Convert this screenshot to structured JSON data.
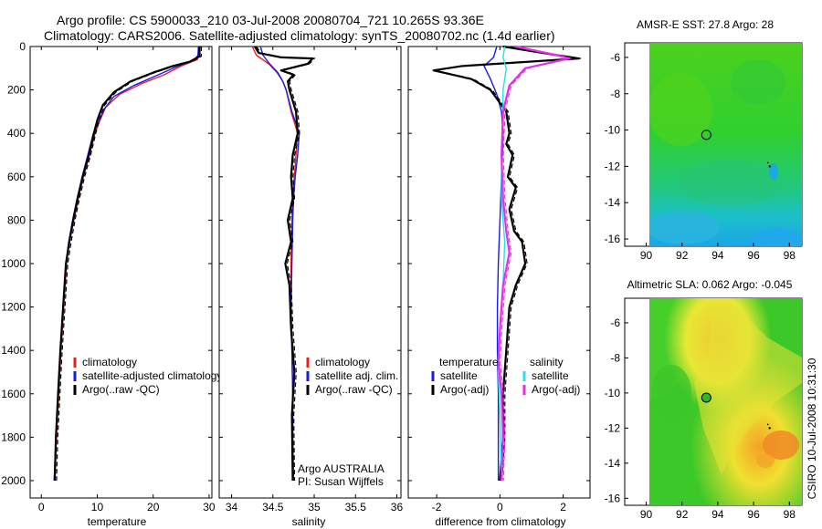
{
  "header": {
    "line1": "Argo profile: CS 5900033_210 03-Jul-2008 20080704_721 10.265S 93.36E",
    "line2": "Climatology: CARS2006. Satellite-adjusted climatology: synTS_20080702.nc (1.4d earlier)"
  },
  "colors": {
    "climatology": "#e8221b",
    "satellite": "#1a1ae6",
    "argo": "#000000",
    "sat_salinity": "#22e2ee",
    "argo_adj_salinity": "#e62ee6"
  },
  "chart_data": [
    {
      "type": "line",
      "title": "",
      "xlabel": "temperature",
      "ylabel": "",
      "xlim": [
        -2,
        30.5
      ],
      "ylim": [
        0,
        2080
      ],
      "xticks": [
        "0",
        "10",
        "20",
        "30"
      ],
      "xtick_values": [
        0,
        10,
        20,
        30
      ],
      "yticks": [
        "0",
        "200",
        "400",
        "600",
        "800",
        "1000",
        "1200",
        "1400",
        "1600",
        "1800",
        "2000"
      ],
      "ytick_values": [
        0,
        200,
        400,
        600,
        800,
        1000,
        1200,
        1400,
        1600,
        1800,
        2000
      ],
      "legend": [
        "climatology",
        "satellite-adjusted climatology",
        "Argo(..raw -QC)"
      ],
      "series": [
        {
          "name": "climatology",
          "color": "#e8221b",
          "points": [
            [
              28.2,
              0
            ],
            [
              28.1,
              40
            ],
            [
              27.9,
              60
            ],
            [
              25,
              90
            ],
            [
              22,
              130
            ],
            [
              18,
              170
            ],
            [
              14,
              220
            ],
            [
              11.5,
              280
            ],
            [
              10.5,
              340
            ],
            [
              9.6,
              400
            ],
            [
              8.6,
              500
            ],
            [
              7.5,
              600
            ],
            [
              6.6,
              700
            ],
            [
              5.8,
              800
            ],
            [
              5,
              900
            ],
            [
              4.5,
              1000
            ],
            [
              4,
              1200
            ],
            [
              3.5,
              1400
            ],
            [
              3.1,
              1600
            ],
            [
              2.7,
              1800
            ],
            [
              2.4,
              2000
            ]
          ]
        },
        {
          "name": "satellite-adjusted climatology",
          "color": "#1a1ae6",
          "points": [
            [
              28.1,
              0
            ],
            [
              28,
              40
            ],
            [
              27.5,
              60
            ],
            [
              24,
              95
            ],
            [
              20.5,
              135
            ],
            [
              16.5,
              180
            ],
            [
              13,
              230
            ],
            [
              11.2,
              290
            ],
            [
              10.2,
              350
            ],
            [
              9.3,
              400
            ],
            [
              8.3,
              500
            ],
            [
              7.3,
              600
            ],
            [
              6.4,
              700
            ],
            [
              5.6,
              800
            ],
            [
              4.9,
              900
            ],
            [
              4.4,
              1000
            ],
            [
              3.9,
              1200
            ],
            [
              3.4,
              1400
            ],
            [
              3,
              1600
            ],
            [
              2.6,
              1800
            ],
            [
              2.3,
              2000
            ]
          ]
        },
        {
          "name": "Argo(..raw -QC)",
          "color": "#000000",
          "points": [
            [
              28.3,
              0
            ],
            [
              28.3,
              45
            ],
            [
              26.5,
              70
            ],
            [
              23.5,
              90
            ],
            [
              20,
              120
            ],
            [
              16,
              160
            ],
            [
              13,
              210
            ],
            [
              11,
              270
            ],
            [
              10,
              340
            ],
            [
              9.4,
              400
            ],
            [
              8.5,
              500
            ],
            [
              7.4,
              600
            ],
            [
              6.5,
              700
            ],
            [
              5.7,
              800
            ],
            [
              5,
              900
            ],
            [
              4.4,
              1000
            ],
            [
              3.9,
              1200
            ],
            [
              3.4,
              1400
            ],
            [
              3,
              1600
            ],
            [
              2.6,
              1800
            ],
            [
              2.4,
              2000
            ]
          ]
        }
      ]
    },
    {
      "type": "line",
      "title": "",
      "xlabel": "salinity",
      "xlim": [
        33.85,
        36.05
      ],
      "ylim": [
        0,
        2080
      ],
      "xticks": [
        "34",
        "34.5",
        "35",
        "35.5",
        "36"
      ],
      "xtick_values": [
        34,
        34.5,
        35,
        35.5,
        36
      ],
      "legend": [
        "climatology",
        "satellite adj. clim.",
        "Argo(..raw -QC)"
      ],
      "note_lines": [
        "Argo AUSTRALIA",
        "PI: Susan Wijffels"
      ],
      "series": [
        {
          "name": "climatology",
          "color": "#e8221b",
          "points": [
            [
              34.25,
              0
            ],
            [
              34.3,
              40
            ],
            [
              34.45,
              80
            ],
            [
              34.55,
              120
            ],
            [
              34.62,
              160
            ],
            [
              34.66,
              200
            ],
            [
              34.72,
              300
            ],
            [
              34.8,
              400
            ],
            [
              34.78,
              500
            ],
            [
              34.76,
              600
            ],
            [
              34.74,
              700
            ],
            [
              34.73,
              800
            ],
            [
              34.72,
              1000
            ],
            [
              34.72,
              1200
            ],
            [
              34.73,
              1400
            ],
            [
              34.74,
              1600
            ],
            [
              34.74,
              1800
            ],
            [
              34.75,
              2000
            ]
          ]
        },
        {
          "name": "satellite adj. clim.",
          "color": "#1a1ae6",
          "points": [
            [
              34.35,
              0
            ],
            [
              34.38,
              40
            ],
            [
              34.46,
              80
            ],
            [
              34.56,
              120
            ],
            [
              34.62,
              160
            ],
            [
              34.66,
              200
            ],
            [
              34.73,
              300
            ],
            [
              34.82,
              400
            ],
            [
              34.8,
              500
            ],
            [
              34.77,
              600
            ],
            [
              34.75,
              700
            ],
            [
              34.74,
              800
            ],
            [
              34.73,
              1000
            ],
            [
              34.72,
              1200
            ],
            [
              34.73,
              1400
            ],
            [
              34.74,
              1600
            ],
            [
              34.74,
              1800
            ],
            [
              34.75,
              2000
            ]
          ]
        },
        {
          "name": "Argo(..raw -QC)",
          "color": "#000000",
          "points": [
            [
              34.28,
              0
            ],
            [
              34.33,
              30
            ],
            [
              34.6,
              50
            ],
            [
              34.98,
              55
            ],
            [
              34.92,
              80
            ],
            [
              34.6,
              110
            ],
            [
              34.75,
              130
            ],
            [
              34.68,
              160
            ],
            [
              34.7,
              200
            ],
            [
              34.78,
              300
            ],
            [
              34.8,
              400
            ],
            [
              34.74,
              500
            ],
            [
              34.72,
              600
            ],
            [
              34.74,
              700
            ],
            [
              34.68,
              800
            ],
            [
              34.72,
              900
            ],
            [
              34.65,
              1000
            ],
            [
              34.7,
              1100
            ],
            [
              34.72,
              1300
            ],
            [
              34.76,
              1500
            ],
            [
              34.73,
              1700
            ],
            [
              34.74,
              2000
            ]
          ]
        }
      ]
    },
    {
      "type": "line",
      "title": "",
      "xlabel": "difference from climatology",
      "xlim": [
        -2.9,
        2.85
      ],
      "ylim": [
        0,
        2080
      ],
      "xticks": [
        "-2",
        "0",
        "2"
      ],
      "xtick_values": [
        -2,
        0,
        2
      ],
      "legend_left_title": "temperature",
      "legend_left": [
        "satellite",
        "Argo(-adj)"
      ],
      "legend_right_title": "salinity",
      "legend_right": [
        "satellite",
        "Argo(-adj)"
      ],
      "series": [
        {
          "name": "temperature satellite",
          "color": "#1a1ae6",
          "points": [
            [
              -0.1,
              0
            ],
            [
              -0.2,
              50
            ],
            [
              -0.5,
              90
            ],
            [
              -0.3,
              150
            ],
            [
              -0.1,
              220
            ],
            [
              0.05,
              300
            ],
            [
              0.1,
              400
            ],
            [
              0.05,
              600
            ],
            [
              0,
              800
            ],
            [
              -0.05,
              1000
            ],
            [
              -0.08,
              1200
            ],
            [
              -0.08,
              1400
            ],
            [
              -0.05,
              1600
            ],
            [
              -0.05,
              1800
            ],
            [
              -0.05,
              2000
            ]
          ]
        },
        {
          "name": "temperature Argo(-adj)",
          "color": "#000000",
          "points": [
            [
              0.1,
              0
            ],
            [
              1.8,
              40
            ],
            [
              2.5,
              55
            ],
            [
              -1.2,
              90
            ],
            [
              -2.1,
              110
            ],
            [
              -0.9,
              150
            ],
            [
              -0.3,
              200
            ],
            [
              0.2,
              300
            ],
            [
              0.3,
              400
            ],
            [
              0.2,
              450
            ],
            [
              0.4,
              500
            ],
            [
              0.25,
              600
            ],
            [
              0.5,
              650
            ],
            [
              0.3,
              750
            ],
            [
              0.45,
              850
            ],
            [
              0.7,
              900
            ],
            [
              0.8,
              1000
            ],
            [
              0.5,
              1100
            ],
            [
              0.3,
              1200
            ],
            [
              0.2,
              1400
            ],
            [
              0.1,
              1600
            ],
            [
              0.1,
              1800
            ],
            [
              0,
              2000
            ]
          ]
        },
        {
          "name": "salinity satellite",
          "color": "#22e2ee",
          "points": [
            [
              0.15,
              0
            ],
            [
              0.1,
              50
            ],
            [
              0.2,
              100
            ],
            [
              0.1,
              200
            ],
            [
              0.1,
              300
            ],
            [
              0.05,
              500
            ],
            [
              0.05,
              700
            ],
            [
              0.15,
              900
            ],
            [
              0.1,
              1100
            ],
            [
              0,
              1300
            ],
            [
              -0.05,
              1500
            ],
            [
              0,
              1700
            ],
            [
              0.05,
              2000
            ]
          ]
        },
        {
          "name": "salinity Argo(-adj)",
          "color": "#e62ee6",
          "points": [
            [
              0.5,
              0
            ],
            [
              1.8,
              40
            ],
            [
              2.2,
              55
            ],
            [
              0.8,
              100
            ],
            [
              0.3,
              180
            ],
            [
              0.1,
              300
            ],
            [
              0.05,
              500
            ],
            [
              0.1,
              700
            ],
            [
              0.2,
              850
            ],
            [
              0.3,
              950
            ],
            [
              0.1,
              1100
            ],
            [
              0,
              1300
            ],
            [
              -0.05,
              1450
            ],
            [
              0.05,
              1600
            ],
            [
              0.1,
              1800
            ],
            [
              0.05,
              2000
            ]
          ]
        }
      ]
    },
    {
      "type": "heatmap",
      "title": "AMSR-E SST: 27.8 Argo: 28",
      "xlim": [
        88.8,
        98.7
      ],
      "ylim": [
        -16.4,
        -5.2
      ],
      "xticks": [
        "90",
        "92",
        "94",
        "96",
        "98"
      ],
      "xtick_values": [
        90,
        92,
        94,
        96,
        98
      ],
      "yticks": [
        "-6",
        "-8",
        "-10",
        "-12",
        "-14",
        "-16"
      ],
      "ytick_values": [
        -6,
        -8,
        -10,
        -12,
        -14,
        -16
      ],
      "data_xrange": [
        90,
        98.7
      ],
      "marker": {
        "lon": 93.36,
        "lat": -10.265
      },
      "point": {
        "lon": 96.9,
        "lat": -12.0
      }
    },
    {
      "type": "heatmap",
      "title": "Altimetric SLA: 0.062 Argo: -0.045",
      "xlim": [
        88.8,
        98.7
      ],
      "ylim": [
        -16.4,
        -4.6
      ],
      "xticks": [
        "90",
        "92",
        "94",
        "96",
        "98"
      ],
      "xtick_values": [
        90,
        92,
        94,
        96,
        98
      ],
      "yticks": [
        "-6",
        "-8",
        "-10",
        "-12",
        "-14",
        "-16"
      ],
      "ytick_values": [
        -6,
        -8,
        -10,
        -12,
        -14,
        -16
      ],
      "data_xrange": [
        90,
        98.7
      ],
      "marker": {
        "lon": 93.36,
        "lat": -10.265
      },
      "point": {
        "lon": 96.9,
        "lat": -12.0
      }
    }
  ],
  "stamp": "CSIRO 10-Jul-2008 10:31:30"
}
